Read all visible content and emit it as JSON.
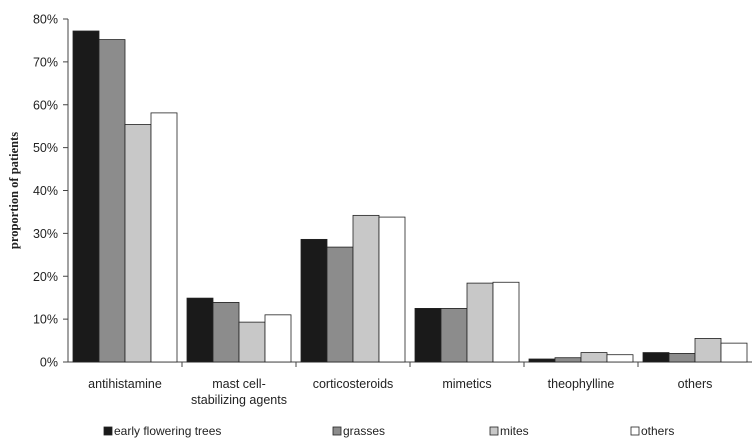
{
  "chart_data": {
    "type": "bar",
    "title": "",
    "xlabel": "",
    "ylabel": "proportion of patients",
    "ylim": [
      0,
      80
    ],
    "y_tick_values": [
      0,
      10,
      20,
      30,
      40,
      50,
      60,
      70,
      80
    ],
    "y_tick_labels": [
      "0%",
      "10%",
      "20%",
      "30%",
      "40%",
      "50%",
      "60%",
      "70%",
      "80%"
    ],
    "grid": false,
    "legend_position": "bottom",
    "categories": [
      [
        "antihistamine"
      ],
      [
        "mast cell-",
        "stabilizing agents"
      ],
      [
        "corticosteroids"
      ],
      [
        "mimetics"
      ],
      [
        "theophylline"
      ],
      [
        "others"
      ]
    ],
    "series": [
      {
        "name": "early flowering trees",
        "color": "#1a1a1a",
        "values": [
          77.2,
          14.9,
          28.6,
          12.5,
          0.7,
          2.2
        ]
      },
      {
        "name": "grasses",
        "color": "#8c8c8c",
        "values": [
          75.2,
          13.9,
          26.8,
          12.5,
          1.0,
          2.0
        ]
      },
      {
        "name": "mites",
        "color": "#c8c8c8",
        "values": [
          55.4,
          9.3,
          34.2,
          18.4,
          2.2,
          5.5
        ]
      },
      {
        "name": "others",
        "color": "#ffffff",
        "values": [
          58.1,
          11.0,
          33.8,
          18.6,
          1.7,
          4.4
        ]
      }
    ]
  }
}
